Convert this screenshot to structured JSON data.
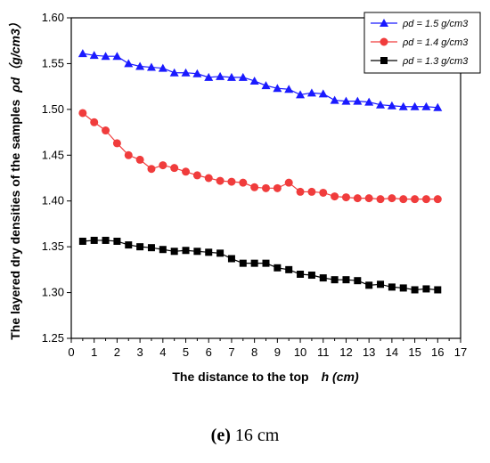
{
  "chart_data": {
    "type": "line",
    "xlabel": "The distance to the top",
    "xlabel_var": "h (cm)",
    "ylabel": "The layered dry densities of the samples",
    "ylabel_var": "ρd（g/cm3）",
    "xlim": [
      0,
      17
    ],
    "ylim": [
      1.25,
      1.6
    ],
    "x_ticks": [
      0,
      1,
      2,
      3,
      4,
      5,
      6,
      7,
      8,
      9,
      10,
      11,
      12,
      13,
      14,
      15,
      16,
      17
    ],
    "y_ticks": [
      "1.25",
      "1.30",
      "1.35",
      "1.40",
      "1.45",
      "1.50",
      "1.55",
      "1.60"
    ],
    "legend_position": "top-right",
    "x": [
      0.5,
      1.0,
      1.5,
      2.0,
      2.5,
      3.0,
      3.5,
      4.0,
      4.5,
      5.0,
      5.5,
      6.0,
      6.5,
      7.0,
      7.5,
      8.0,
      8.5,
      9.0,
      9.5,
      10.0,
      10.5,
      11.0,
      11.5,
      12.0,
      12.5,
      13.0,
      13.5,
      14.0,
      14.5,
      15.0,
      15.5,
      16.0
    ],
    "series": [
      {
        "name": "ρd = 1.5 g/cm3",
        "color": "#1a1aff",
        "marker": "triangle",
        "values": [
          1.561,
          1.559,
          1.558,
          1.558,
          1.55,
          1.547,
          1.546,
          1.545,
          1.54,
          1.54,
          1.539,
          1.535,
          1.536,
          1.535,
          1.535,
          1.531,
          1.526,
          1.523,
          1.522,
          1.516,
          1.518,
          1.517,
          1.51,
          1.509,
          1.509,
          1.508,
          1.505,
          1.504,
          1.503,
          1.503,
          1.503,
          1.502
        ]
      },
      {
        "name": "ρd = 1.4 g/cm3",
        "color": "#f03c3c",
        "marker": "circle",
        "values": [
          1.496,
          1.486,
          1.477,
          1.463,
          1.45,
          1.445,
          1.435,
          1.439,
          1.436,
          1.432,
          1.428,
          1.425,
          1.422,
          1.421,
          1.42,
          1.415,
          1.414,
          1.414,
          1.42,
          1.41,
          1.41,
          1.409,
          1.405,
          1.404,
          1.403,
          1.403,
          1.402,
          1.403,
          1.402,
          1.402,
          1.402,
          1.402
        ]
      },
      {
        "name": "ρd = 1.3 g/cm3",
        "color": "#000000",
        "marker": "square",
        "values": [
          1.356,
          1.357,
          1.357,
          1.356,
          1.352,
          1.35,
          1.349,
          1.347,
          1.345,
          1.346,
          1.345,
          1.344,
          1.343,
          1.337,
          1.332,
          1.332,
          1.332,
          1.327,
          1.325,
          1.32,
          1.319,
          1.316,
          1.314,
          1.314,
          1.313,
          1.308,
          1.309,
          1.306,
          1.305,
          1.303,
          1.304,
          1.303
        ]
      }
    ]
  },
  "caption": {
    "label": "(e)",
    "text": " 16 cm"
  }
}
